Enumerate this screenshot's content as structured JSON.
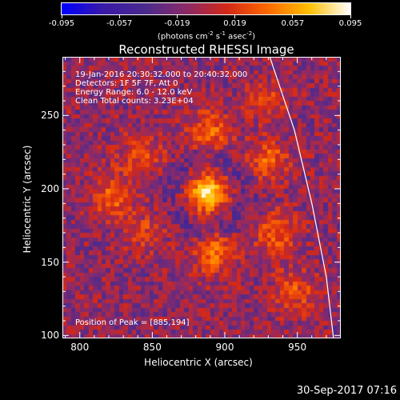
{
  "colorbar": {
    "ticks": [
      "-0.095",
      "-0.057",
      "-0.019",
      "0.019",
      "0.057",
      "0.095"
    ],
    "units_base": "(photons cm",
    "units_exp1": "-2",
    "units_mid1": " s",
    "units_exp2": "-1",
    "units_mid2": " asec",
    "units_exp3": "-2",
    "units_end": ")",
    "colors": [
      "#0000ff",
      "#3a1aa8",
      "#4a2a8e",
      "#8a2a6a",
      "#d42818",
      "#ff6a00",
      "#ffc000",
      "#ffffff"
    ]
  },
  "chart_data": {
    "type": "heatmap",
    "title": "Reconstructed RHESSI Image",
    "xlabel": "Heliocentric X (arcsec)",
    "ylabel": "Heliocentric Y (arcsec)",
    "xlim": [
      788,
      980
    ],
    "ylim": [
      98,
      290
    ],
    "xticks": [
      800,
      850,
      900,
      950
    ],
    "yticks": [
      100,
      150,
      200,
      250
    ],
    "value_range": [
      -0.095,
      0.095
    ],
    "peak": [
      885,
      194
    ],
    "sources": [
      {
        "x": 888,
        "y": 197,
        "amplitude": 0.095,
        "sigma": 9
      },
      {
        "x": 893,
        "y": 157,
        "amplitude": 0.055,
        "sigma": 10
      },
      {
        "x": 889,
        "y": 238,
        "amplitude": 0.05,
        "sigma": 10
      },
      {
        "x": 822,
        "y": 194,
        "amplitude": 0.045,
        "sigma": 10
      },
      {
        "x": 842,
        "y": 222,
        "amplitude": 0.035,
        "sigma": 11
      },
      {
        "x": 930,
        "y": 220,
        "amplitude": 0.045,
        "sigma": 10
      },
      {
        "x": 936,
        "y": 170,
        "amplitude": 0.045,
        "sigma": 10
      },
      {
        "x": 948,
        "y": 130,
        "amplitude": 0.04,
        "sigma": 10
      },
      {
        "x": 845,
        "y": 170,
        "amplitude": 0.03,
        "sigma": 10
      },
      {
        "x": 930,
        "y": 260,
        "amplitude": 0.035,
        "sigma": 9
      }
    ],
    "limb": [
      [
        931,
        290
      ],
      [
        948,
        240
      ],
      [
        960,
        190
      ],
      [
        970,
        140
      ],
      [
        975,
        98
      ]
    ]
  },
  "info": {
    "line1": "19-Jan-2016 20:30:32.000 to 20:40:32.000",
    "line2": "Detectors: 1F 5F 7F, Att 0",
    "line3": "Energy Range: 6.0 - 12.0 keV",
    "line4": "Clean     Total counts: 3.23E+04"
  },
  "peak_label": "Position of Peak = [885,194]",
  "datestamp": "30-Sep-2017 07:16"
}
